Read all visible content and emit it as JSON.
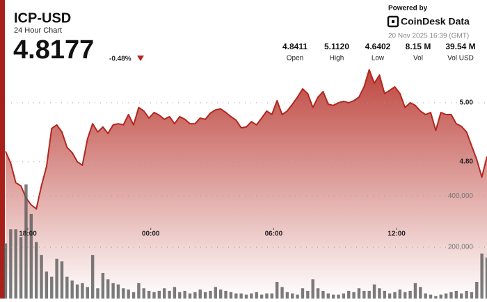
{
  "header": {
    "title": "ICP-USD",
    "subtitle": "24 Hour Chart",
    "price": "4.8177",
    "change": "-0.48%"
  },
  "stats": [
    {
      "value": "4.8411",
      "label": "Open"
    },
    {
      "value": "5.1120",
      "label": "High"
    },
    {
      "value": "4.6402",
      "label": "Low"
    },
    {
      "value": "8.15 M",
      "label": "Vol"
    },
    {
      "value": "39.54 M",
      "label": "Vol USD"
    }
  ],
  "powered": {
    "by": "Powered by",
    "brand": "CoinDesk Data",
    "timestamp": "20 Nov 2025 16:39 (GMT)"
  },
  "chart_data": {
    "type": "line",
    "xlim": [
      0,
      94
    ],
    "xticks": [
      {
        "value": 4.35,
        "label": "18:00"
      },
      {
        "value": 28.35,
        "label": "00:00"
      },
      {
        "value": 52.35,
        "label": "06:00"
      },
      {
        "value": 76.35,
        "label": "12:00"
      }
    ],
    "ylim": [
      4.3365,
      5.1365
    ],
    "yticks": [
      {
        "value": 5,
        "label": "5.00"
      },
      {
        "value": 4.8,
        "label": "4.80"
      }
    ],
    "y2lim": [
      0,
      920000
    ],
    "y2ticks": [
      {
        "value": 200000,
        "label": "200,000"
      },
      {
        "value": 400000,
        "label": "400,000"
      }
    ],
    "series": [
      {
        "color": "#b3261e",
        "values": [
          4.835,
          4.795,
          4.729,
          4.718,
          4.678,
          4.654,
          4.6402,
          4.718,
          4.784,
          4.913,
          4.925,
          4.901,
          4.849,
          4.831,
          4.8,
          4.788,
          4.878,
          4.929,
          4.901,
          4.918,
          4.896,
          4.925,
          4.929,
          4.925,
          4.96,
          4.925,
          4.984,
          4.972,
          4.948,
          4.967,
          4.958,
          4.944,
          4.953,
          4.929,
          4.953,
          4.944,
          4.929,
          4.929,
          4.948,
          4.944,
          4.965,
          4.976,
          4.979,
          4.967,
          4.953,
          4.941,
          4.915,
          4.918,
          4.936,
          4.925,
          4.948,
          4.972,
          4.96,
          5.007,
          4.96,
          4.972,
          4.995,
          5.019,
          5.047,
          5.031,
          4.984,
          5.019,
          5.038,
          4.995,
          4.991,
          5.0,
          5.005,
          5.0,
          5.007,
          5.019,
          5.054,
          5.112,
          5.066,
          5.094,
          5.031,
          5.042,
          5.054,
          5.031,
          4.984,
          5.0,
          4.991,
          4.972,
          4.96,
          4.967,
          4.906,
          4.967,
          4.96,
          4.96,
          4.929,
          4.92,
          4.901,
          4.854,
          4.807,
          4.748,
          4.8177
        ]
      },
      {
        "type": "bar",
        "axis": "y2",
        "color": "#5a5a5a",
        "values": [
          215000,
          270000,
          270000,
          240000,
          445000,
          330000,
          220000,
          170000,
          105000,
          85000,
          155000,
          145000,
          85000,
          70000,
          55000,
          60000,
          45000,
          170000,
          40000,
          100000,
          75000,
          60000,
          55000,
          40000,
          35000,
          25000,
          60000,
          40000,
          30000,
          25000,
          30000,
          40000,
          30000,
          45000,
          25000,
          30000,
          20000,
          25000,
          35000,
          25000,
          30000,
          45000,
          35000,
          30000,
          25000,
          20000,
          20000,
          15000,
          20000,
          25000,
          15000,
          20000,
          20000,
          65000,
          45000,
          25000,
          20000,
          15000,
          40000,
          30000,
          75000,
          40000,
          30000,
          20000,
          15000,
          15000,
          20000,
          30000,
          25000,
          40000,
          30000,
          30000,
          55000,
          40000,
          30000,
          20000,
          25000,
          35000,
          25000,
          30000,
          60000,
          45000,
          20000,
          15000,
          10000,
          15000,
          20000,
          25000,
          30000,
          20000,
          30000,
          25000,
          65000,
          175000,
          160000
        ]
      }
    ]
  }
}
